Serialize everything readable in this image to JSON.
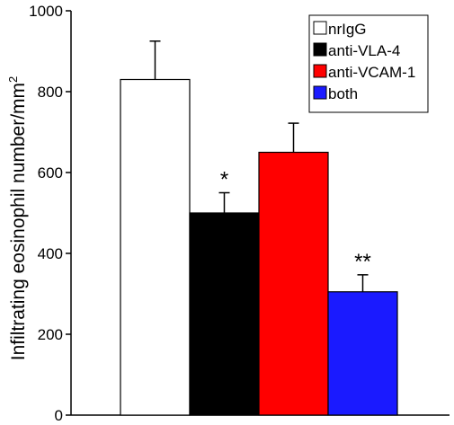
{
  "chart_data": {
    "type": "bar",
    "title": "",
    "xlabel": "",
    "ylabel": "Infiltrating eosinophil number/mm",
    "ylabel_superscript": "2",
    "ylim": [
      0,
      1000
    ],
    "yticks": [
      0,
      200,
      400,
      600,
      800,
      1000
    ],
    "grid": false,
    "legend_position": "top-right",
    "series": [
      {
        "name": "nrIgG",
        "value": 830,
        "error": 95,
        "color": "#ffffff",
        "annotation": ""
      },
      {
        "name": "anti-VLA-4",
        "value": 500,
        "error": 50,
        "color": "#000000",
        "annotation": "*"
      },
      {
        "name": "anti-VCAM-1",
        "value": 650,
        "error": 72,
        "color": "#ff0000",
        "annotation": ""
      },
      {
        "name": "both",
        "value": 305,
        "error": 42,
        "color": "#1a1aff",
        "annotation": "**"
      }
    ]
  }
}
